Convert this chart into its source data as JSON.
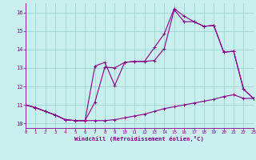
{
  "xlabel": "Windchill (Refroidissement éolien,°C)",
  "bg_color": "#c8eeee",
  "line_color": "#880088",
  "grid_color": "#99cccc",
  "xlim": [
    0,
    23
  ],
  "ylim": [
    9.75,
    16.5
  ],
  "xticks": [
    0,
    1,
    2,
    3,
    4,
    5,
    6,
    7,
    8,
    9,
    10,
    11,
    12,
    13,
    14,
    15,
    16,
    17,
    18,
    19,
    20,
    21,
    22,
    23
  ],
  "yticks": [
    10,
    11,
    12,
    13,
    14,
    15,
    16
  ],
  "line1_x": [
    0,
    1,
    2,
    3,
    4,
    5,
    6,
    7,
    8,
    9,
    10,
    11,
    12,
    13,
    14,
    15,
    16,
    17,
    18,
    19,
    20,
    21,
    22,
    23
  ],
  "line1_y": [
    11.0,
    10.85,
    10.65,
    10.45,
    10.2,
    10.15,
    10.15,
    10.15,
    10.15,
    10.2,
    10.3,
    10.4,
    10.5,
    10.65,
    10.8,
    10.9,
    11.0,
    11.1,
    11.2,
    11.3,
    11.45,
    11.55,
    11.35,
    11.35
  ],
  "line2_x": [
    0,
    1,
    2,
    3,
    4,
    5,
    6,
    7,
    8,
    9,
    10,
    11,
    12,
    13,
    14,
    15,
    16,
    17,
    18,
    19,
    20,
    21,
    22,
    23
  ],
  "line2_y": [
    11.0,
    10.85,
    10.65,
    10.45,
    10.2,
    10.15,
    10.15,
    11.15,
    13.05,
    13.0,
    13.3,
    13.35,
    13.35,
    13.4,
    14.05,
    16.15,
    15.5,
    15.5,
    15.25,
    15.3,
    13.85,
    13.9,
    11.85,
    11.35
  ],
  "line3_x": [
    0,
    1,
    2,
    3,
    4,
    5,
    6,
    7,
    8,
    9,
    10,
    11,
    12,
    13,
    14,
    15,
    16,
    17,
    18,
    19,
    20,
    21,
    22,
    23
  ],
  "line3_y": [
    11.0,
    10.85,
    10.65,
    10.45,
    10.2,
    10.15,
    10.15,
    13.1,
    13.3,
    12.05,
    13.3,
    13.35,
    13.35,
    14.1,
    14.85,
    16.2,
    15.8,
    15.5,
    15.25,
    15.3,
    13.85,
    13.9,
    11.85,
    11.35
  ]
}
